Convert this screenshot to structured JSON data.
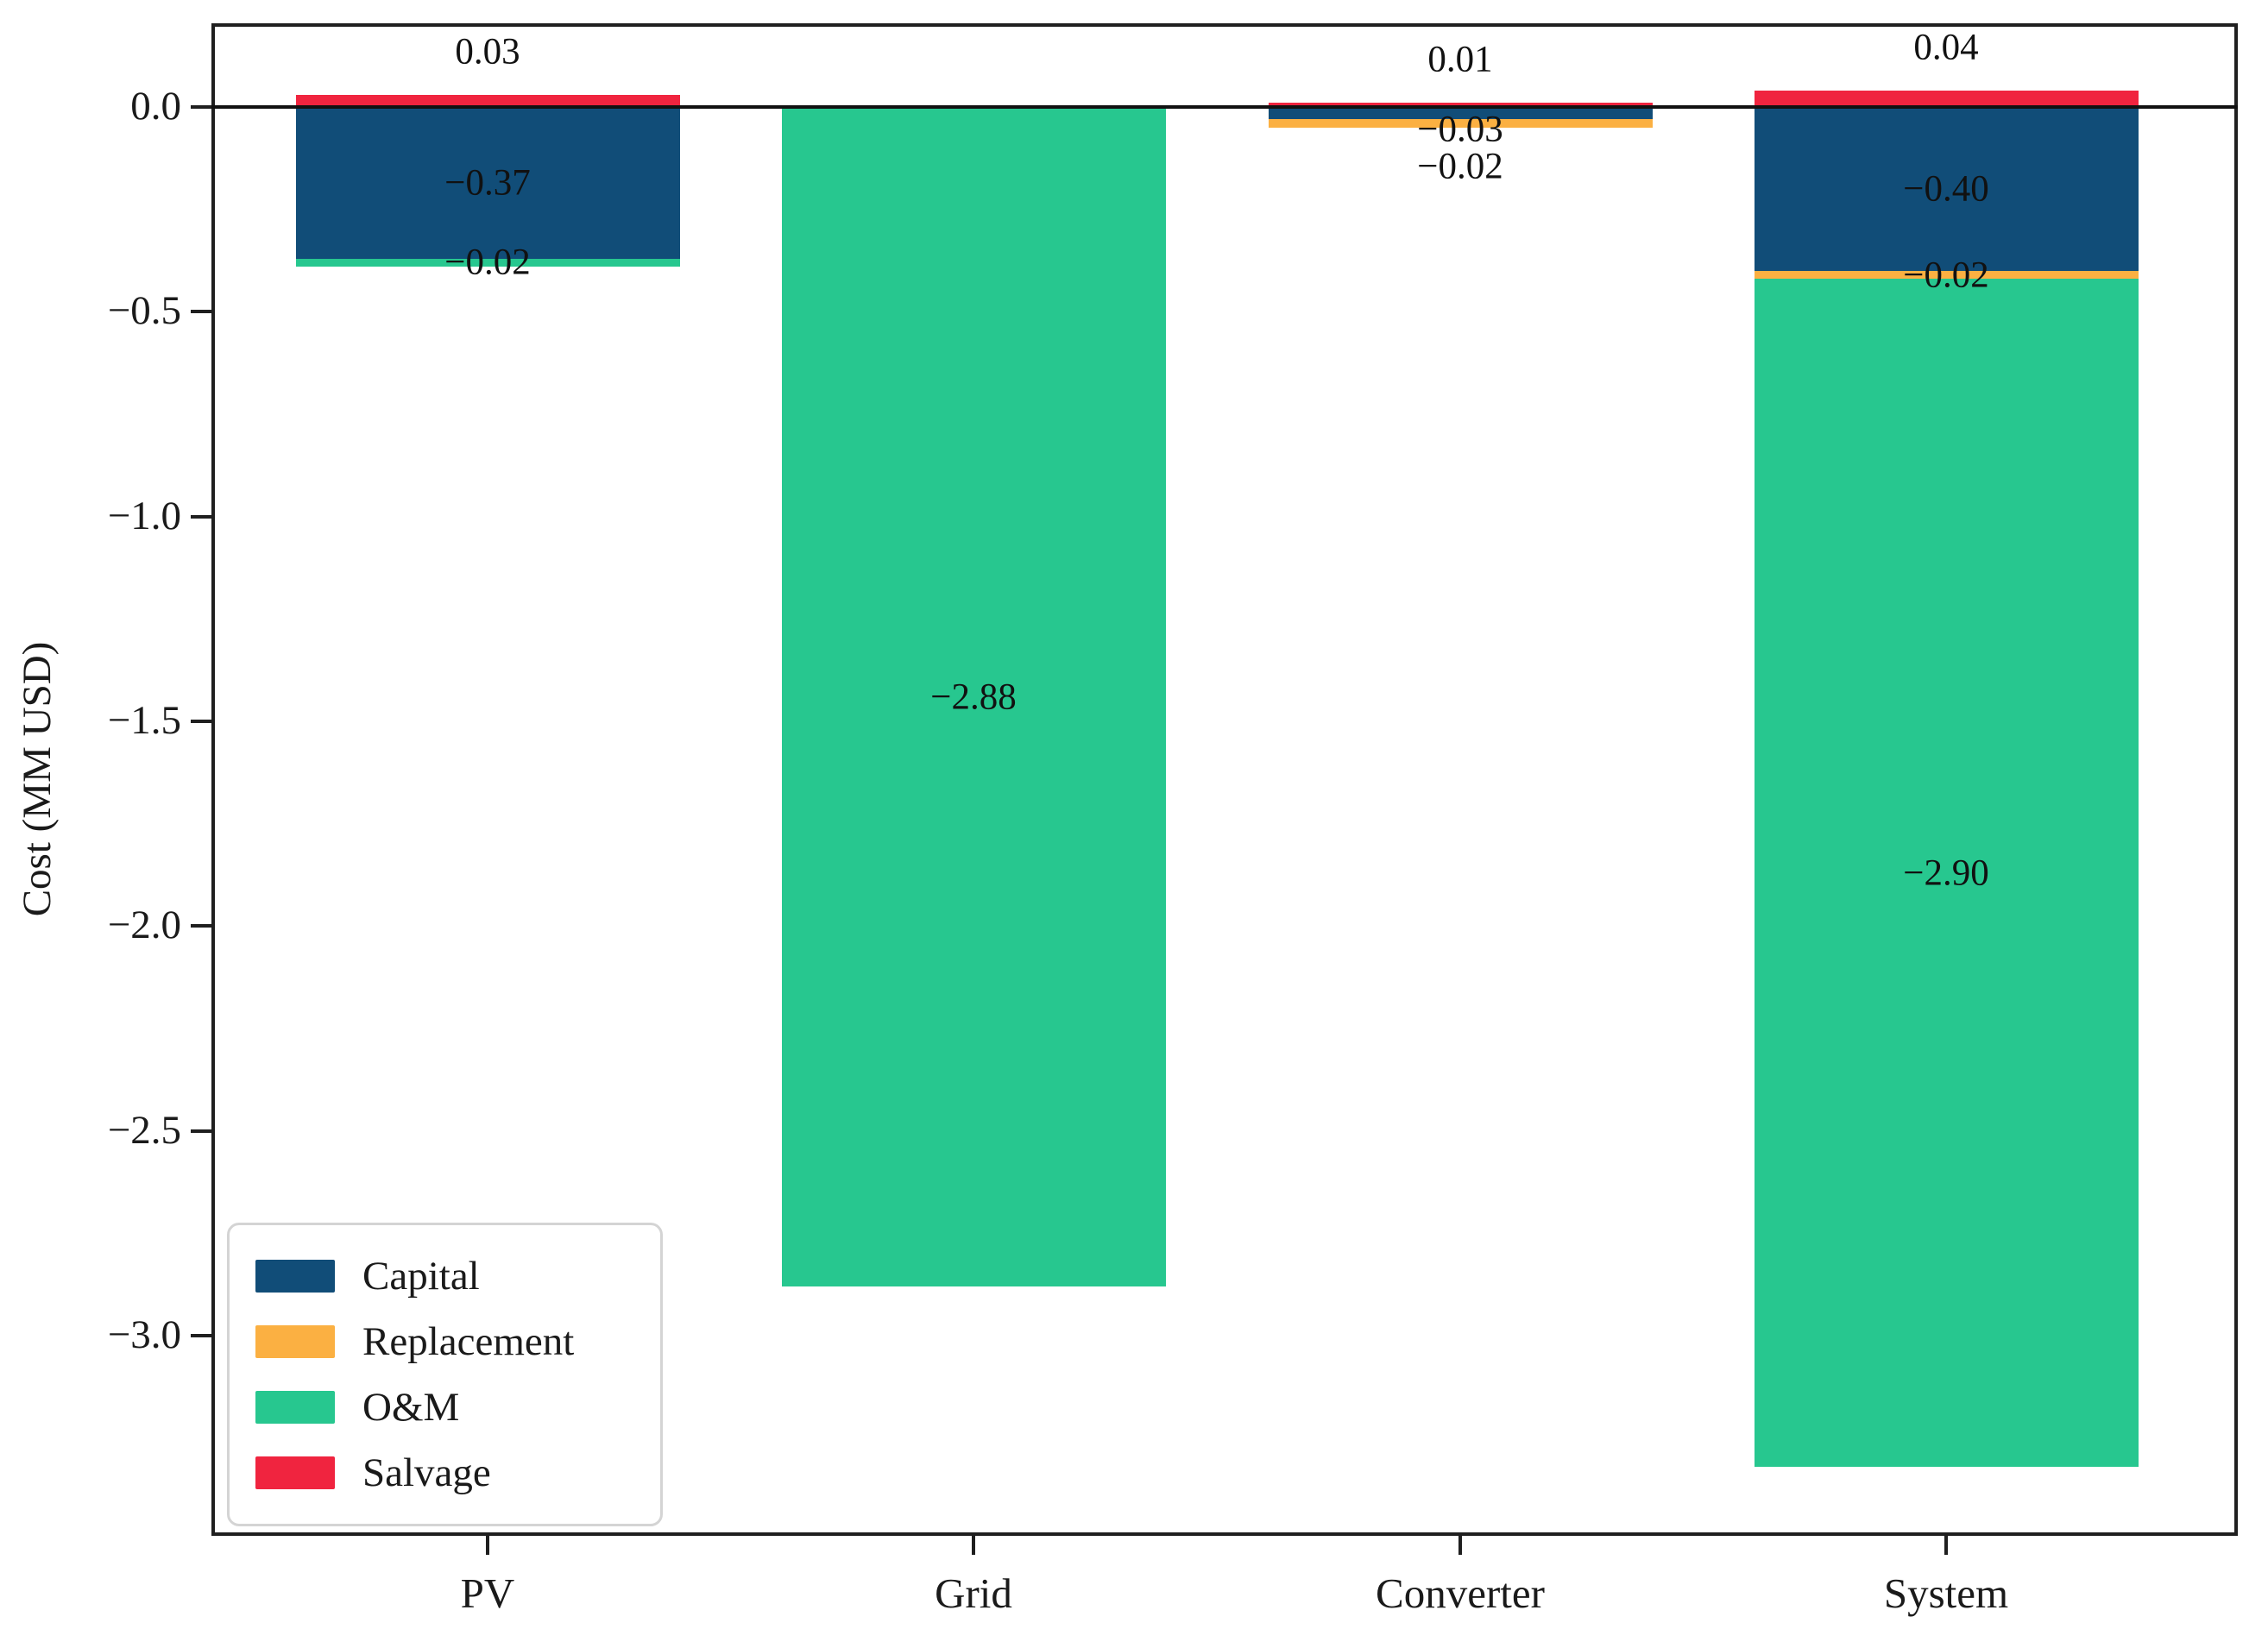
{
  "chart_data": {
    "type": "bar",
    "stacked": true,
    "title": "",
    "xlabel": "",
    "ylabel": "Cost (MM USD)",
    "categories": [
      "PV",
      "Grid",
      "Converter",
      "System"
    ],
    "series": [
      {
        "name": "Capital",
        "color": "#114d78",
        "values": [
          -0.37,
          0.0,
          -0.03,
          -0.4
        ]
      },
      {
        "name": "Replacement",
        "color": "#fbb042",
        "values": [
          0.0,
          0.0,
          -0.02,
          -0.02
        ]
      },
      {
        "name": "O&M",
        "color": "#27c78f",
        "values": [
          -0.02,
          -2.88,
          0.0,
          -2.9
        ]
      },
      {
        "name": "Salvage",
        "color": "#f0243f",
        "values": [
          0.03,
          0.0,
          0.01,
          0.04
        ]
      }
    ],
    "value_labels": [
      {
        "category": "PV",
        "text": "0.03",
        "position": "above"
      },
      {
        "category": "PV",
        "text": "−0.37",
        "at": -0.185
      },
      {
        "category": "PV",
        "text": "−0.02",
        "at": -0.38
      },
      {
        "category": "Grid",
        "text": "−2.88",
        "at": -1.44
      },
      {
        "category": "Converter",
        "text": "0.01",
        "position": "above"
      },
      {
        "category": "Converter",
        "text": "−0.03",
        "at": -0.055
      },
      {
        "category": "Converter",
        "text": "−0.02",
        "at": -0.145
      },
      {
        "category": "System",
        "text": "0.04",
        "position": "above"
      },
      {
        "category": "System",
        "text": "−0.40",
        "at": -0.2
      },
      {
        "category": "System",
        "text": "−0.02",
        "at": -0.41
      },
      {
        "category": "System",
        "text": "−2.90",
        "at": -1.87
      }
    ],
    "y_ticks": [
      {
        "value": 0.0,
        "label": "0.0"
      },
      {
        "value": -0.5,
        "label": "−0.5"
      },
      {
        "value": -1.0,
        "label": "−1.0"
      },
      {
        "value": -1.5,
        "label": "−1.5"
      },
      {
        "value": -2.0,
        "label": "−2.0"
      },
      {
        "value": -2.5,
        "label": "−2.5"
      },
      {
        "value": -3.0,
        "label": "−3.0"
      }
    ],
    "ylim": [
      -3.49,
      0.2
    ],
    "grid": false,
    "legend": {
      "position": "lower left",
      "entries": [
        "Capital",
        "Replacement",
        "O&M",
        "Salvage"
      ]
    },
    "axis_color": "#1f1f1f"
  }
}
